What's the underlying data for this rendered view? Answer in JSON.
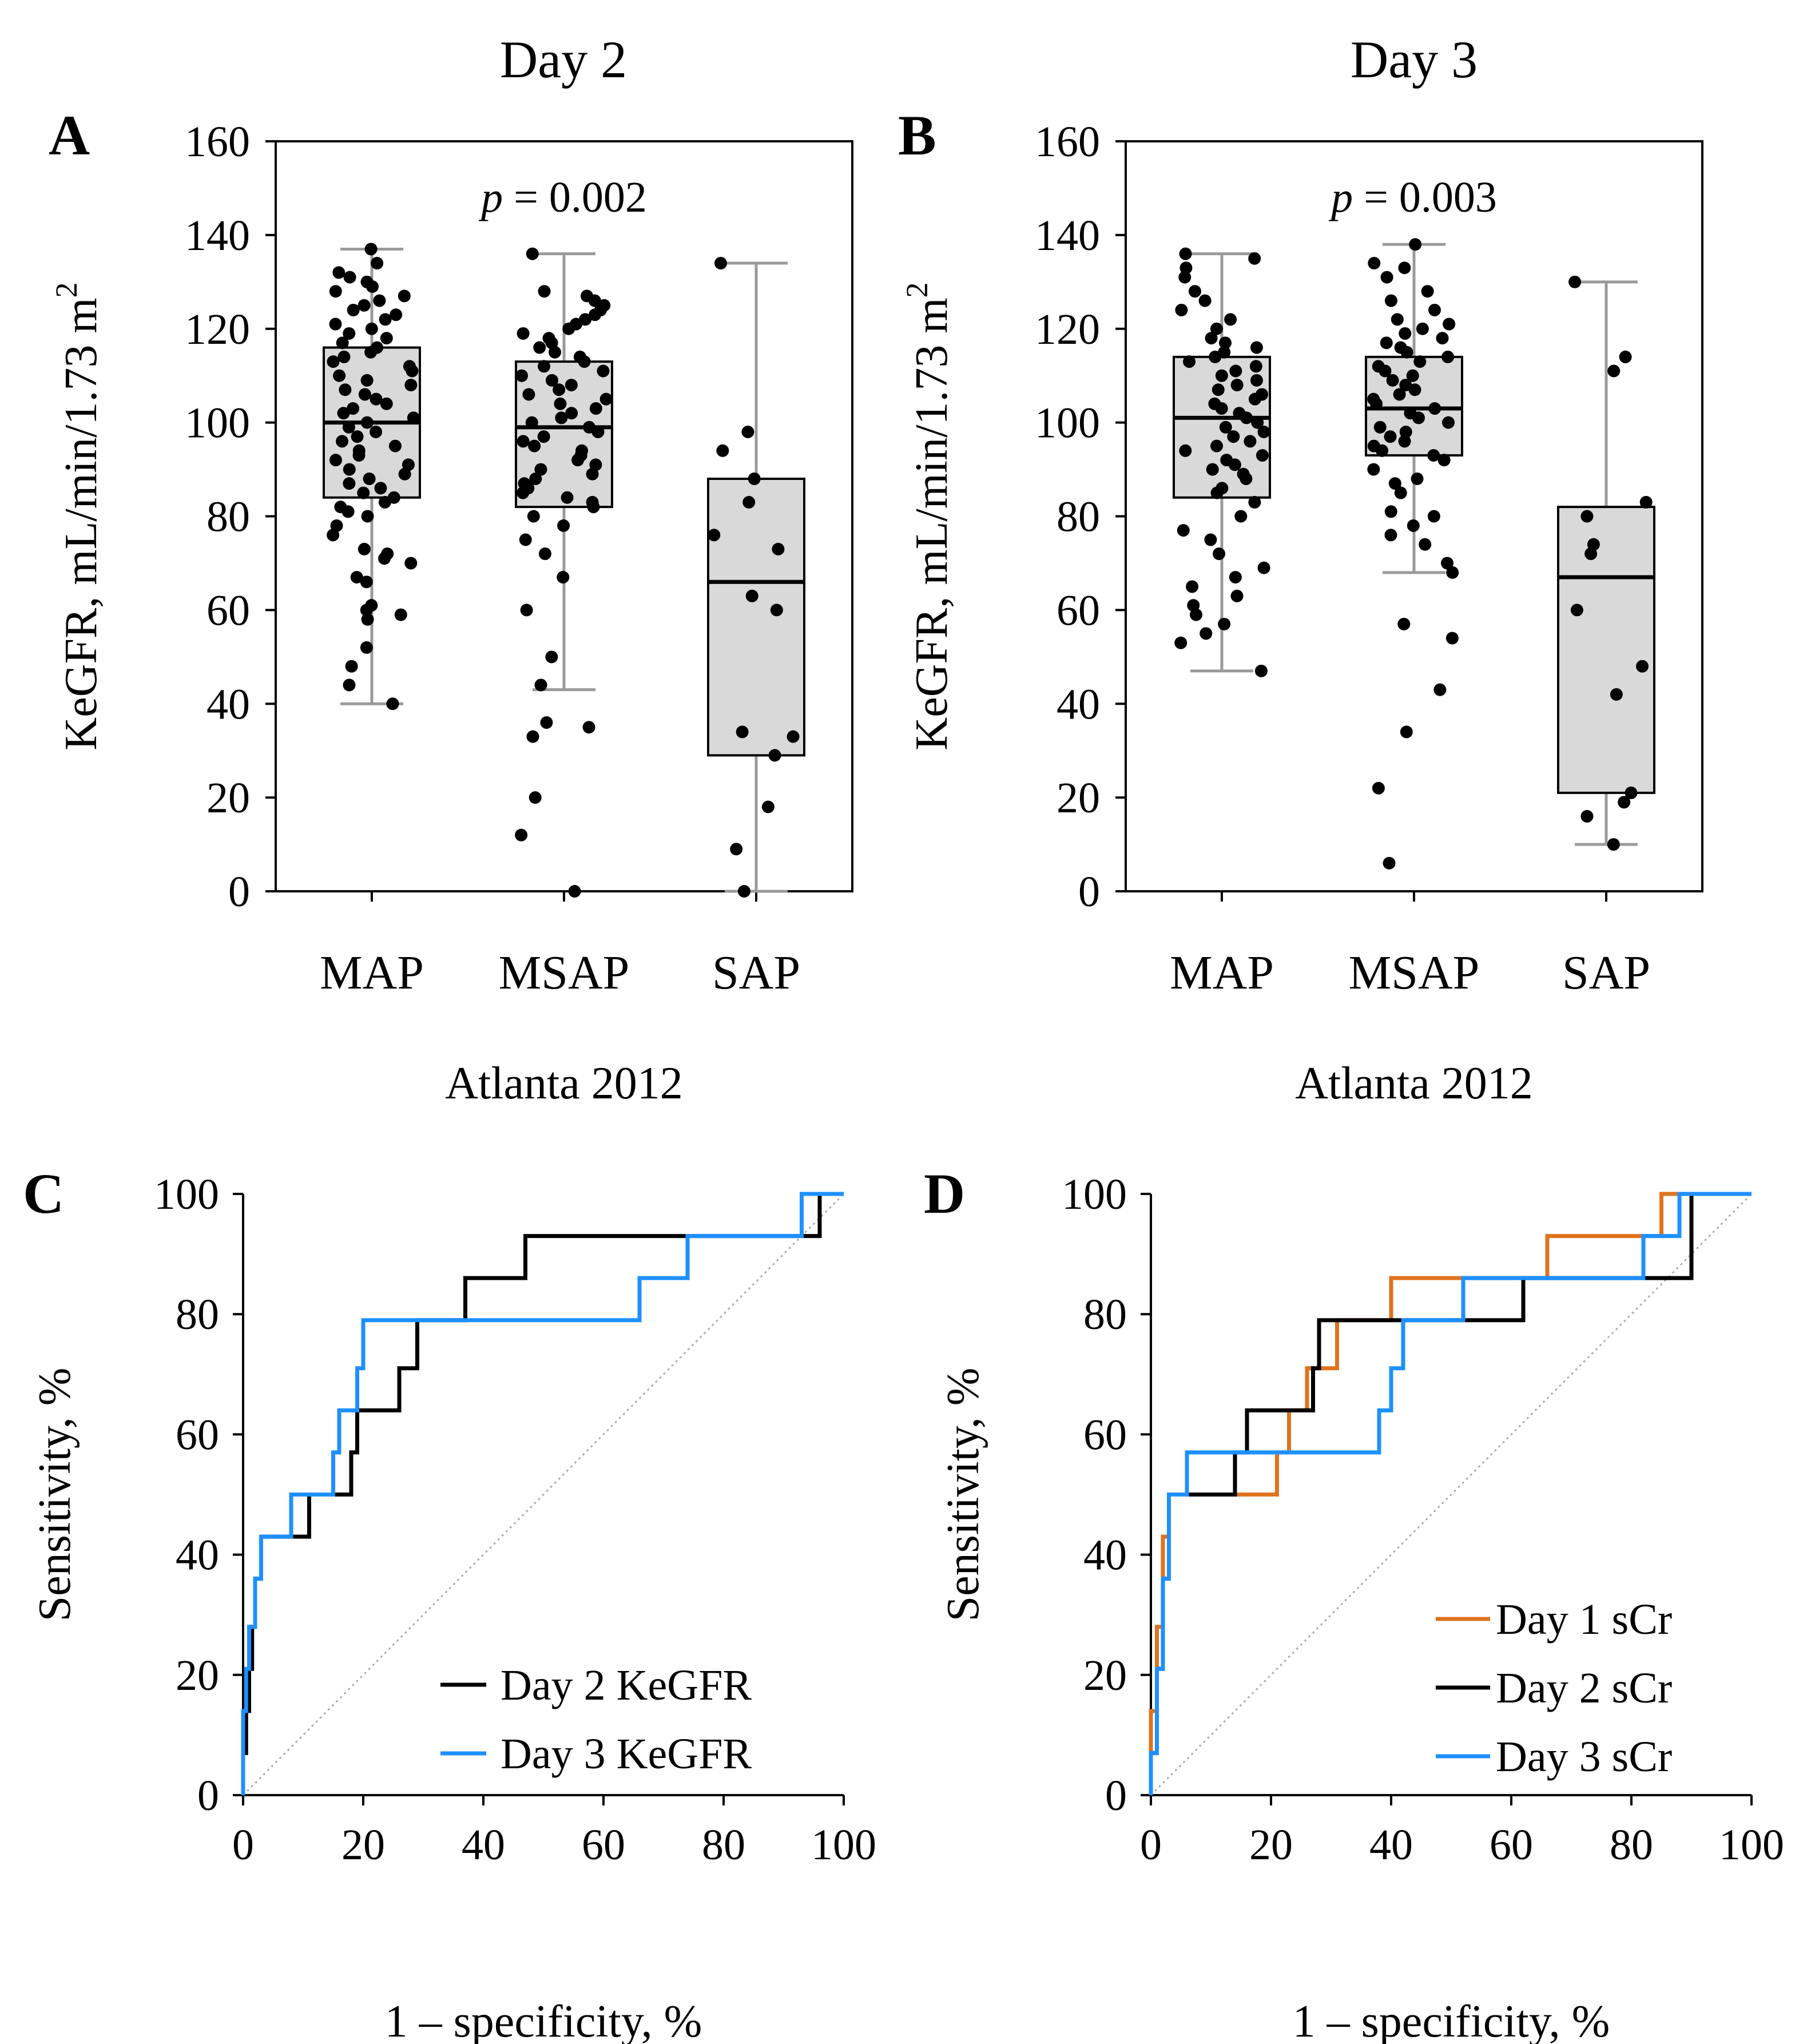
{
  "chart_data": [
    {
      "id": "A",
      "type": "box",
      "panel_label": "A",
      "title": "Day 2",
      "ylabel": "KeGFR, mL/min/1.73 m",
      "ylabel_sup": "2",
      "xlabel": "Atlanta 2012",
      "annotation": {
        "italic": "p",
        "rest": " = 0.002"
      },
      "ylim": [
        0,
        160
      ],
      "yticks": [
        "0",
        "20",
        "40",
        "60",
        "80",
        "100",
        "120",
        "140",
        "160"
      ],
      "categories": [
        "MAP",
        "MSAP",
        "SAP"
      ],
      "boxes": [
        {
          "category": "MAP",
          "q1": 84,
          "median": 100,
          "q3": 116,
          "whisker_low": 40,
          "whisker_high": 137,
          "points": [
            137,
            134,
            132,
            131,
            130,
            129,
            128,
            127,
            126,
            125,
            124,
            123,
            122,
            121,
            120,
            119,
            118,
            117,
            116,
            115,
            114,
            113,
            112,
            111,
            110,
            109,
            108,
            107,
            106,
            105,
            104,
            103,
            102,
            101,
            100,
            99,
            98,
            97,
            96,
            95,
            94,
            93,
            92,
            91,
            90,
            89,
            88,
            87,
            86,
            85,
            84,
            83,
            82,
            81,
            80,
            78,
            76,
            73,
            72,
            71,
            70,
            67,
            66,
            61,
            60,
            59,
            58,
            52,
            48,
            44,
            40
          ]
        },
        {
          "category": "MSAP",
          "q1": 82,
          "median": 99,
          "q3": 113,
          "whisker_low": 43,
          "whisker_high": 136,
          "points": [
            136,
            128,
            127,
            126,
            125,
            124,
            123,
            122,
            121,
            120,
            119,
            118,
            117,
            116,
            115,
            114,
            113,
            112,
            111,
            110,
            109,
            108,
            107,
            106,
            105,
            104,
            103,
            102,
            101,
            100,
            99,
            98,
            97,
            96,
            95,
            94,
            93,
            92,
            91,
            90,
            89,
            88,
            87,
            86,
            85,
            84,
            83,
            82,
            80,
            78,
            75,
            72,
            67,
            60,
            50,
            44,
            36,
            35,
            33,
            20,
            12,
            0
          ]
        },
        {
          "category": "SAP",
          "q1": 29,
          "median": 66,
          "q3": 88,
          "whisker_low": 0,
          "whisker_high": 134,
          "points": [
            134,
            98,
            94,
            88,
            83,
            76,
            73,
            63,
            60,
            34,
            33,
            29,
            18,
            9,
            0
          ]
        }
      ]
    },
    {
      "id": "B",
      "type": "box",
      "panel_label": "B",
      "title": "Day 3",
      "ylabel": "KeGFR, mL/min/1.73 m",
      "ylabel_sup": "2",
      "xlabel": "Atlanta 2012",
      "annotation": {
        "italic": "p",
        "rest": " = 0.003"
      },
      "ylim": [
        0,
        160
      ],
      "yticks": [
        "0",
        "20",
        "40",
        "60",
        "80",
        "100",
        "120",
        "140",
        "160"
      ],
      "categories": [
        "MAP",
        "MSAP",
        "SAP"
      ],
      "boxes": [
        {
          "category": "MAP",
          "q1": 84,
          "median": 101,
          "q3": 114,
          "whisker_low": 47,
          "whisker_high": 136,
          "points": [
            136,
            135,
            133,
            131,
            128,
            126,
            124,
            122,
            120,
            118,
            117,
            116,
            115,
            114,
            113,
            112,
            111,
            110,
            109,
            108,
            107,
            106,
            105,
            104,
            103,
            102,
            101,
            100,
            99,
            98,
            97,
            96,
            95,
            94,
            93,
            92,
            91,
            90,
            89,
            88,
            86,
            85,
            83,
            80,
            77,
            75,
            72,
            69,
            67,
            65,
            63,
            61,
            59,
            57,
            55,
            53,
            47
          ]
        },
        {
          "category": "MSAP",
          "q1": 93,
          "median": 103,
          "q3": 114,
          "whisker_low": 68,
          "whisker_high": 138,
          "points": [
            138,
            134,
            133,
            131,
            128,
            126,
            124,
            122,
            121,
            120,
            119,
            118,
            117,
            116,
            115,
            114,
            113,
            112,
            111,
            110,
            109,
            108,
            107,
            106,
            105,
            104,
            103,
            102,
            101,
            100,
            99,
            98,
            97,
            96,
            95,
            94,
            93,
            92,
            90,
            88,
            87,
            85,
            81,
            80,
            78,
            76,
            74,
            70,
            68,
            57,
            54,
            43,
            34,
            22,
            6
          ]
        },
        {
          "category": "SAP",
          "q1": 21,
          "median": 67,
          "q3": 82,
          "whisker_low": 10,
          "whisker_high": 130,
          "points": [
            130,
            114,
            111,
            83,
            80,
            74,
            72,
            60,
            48,
            42,
            21,
            19,
            16,
            10
          ]
        }
      ]
    },
    {
      "id": "C",
      "type": "line",
      "panel_label": "C",
      "xlabel": "1 – specificity, %",
      "ylabel": "Sensitivity, %",
      "xlim": [
        0,
        100
      ],
      "ylim": [
        0,
        100
      ],
      "xticks": [
        "0",
        "20",
        "40",
        "60",
        "80",
        "100"
      ],
      "yticks": [
        "0",
        "20",
        "40",
        "60",
        "80",
        "100"
      ],
      "reference_line": {
        "x": [
          0,
          100
        ],
        "y": [
          0,
          100
        ],
        "style": "dotted"
      },
      "series": [
        {
          "name": "Day 2 KeGFR",
          "color": "#000000",
          "x": [
            0,
            0,
            0.5,
            0.5,
            1,
            1,
            1.5,
            1.5,
            2,
            2,
            3,
            3,
            8,
            8,
            10,
            10,
            11,
            11,
            16,
            16,
            18,
            18,
            19,
            19,
            26,
            26,
            27,
            27,
            29,
            29,
            37,
            37,
            47,
            47,
            94,
            94,
            96,
            96,
            100
          ],
          "y": [
            0,
            7,
            7,
            14,
            14,
            21,
            21,
            28,
            28,
            36,
            36,
            43,
            43,
            43,
            43,
            43,
            43,
            50,
            50,
            50,
            50,
            57,
            57,
            64,
            64,
            71,
            71,
            71,
            71,
            79,
            79,
            86,
            86,
            93,
            93,
            93,
            93,
            100,
            100
          ]
        },
        {
          "name": "Day 3 KeGFR",
          "color": "#1E90FF",
          "x": [
            0,
            0,
            0.5,
            0.5,
            1,
            1,
            2,
            2,
            3,
            3,
            8,
            8,
            15,
            15,
            16,
            16,
            19,
            19,
            20,
            20,
            66,
            66,
            74,
            74,
            93,
            93,
            100
          ],
          "y": [
            0,
            14,
            14,
            21,
            21,
            28,
            28,
            36,
            36,
            43,
            43,
            50,
            50,
            57,
            57,
            64,
            64,
            71,
            71,
            79,
            79,
            86,
            86,
            93,
            93,
            100,
            100
          ]
        }
      ]
    },
    {
      "id": "D",
      "type": "line",
      "panel_label": "D",
      "xlabel": "1 – specificity, %",
      "ylabel": "Sensitivity, %",
      "xlim": [
        0,
        100
      ],
      "ylim": [
        0,
        100
      ],
      "xticks": [
        "0",
        "20",
        "40",
        "60",
        "80",
        "100"
      ],
      "yticks": [
        "0",
        "20",
        "40",
        "60",
        "80",
        "100"
      ],
      "reference_line": {
        "x": [
          0,
          100
        ],
        "y": [
          0,
          100
        ],
        "style": "dotted"
      },
      "series": [
        {
          "name": "Day 1 sCr",
          "color": "#E0731E",
          "x": [
            0,
            0,
            1,
            1,
            2,
            2,
            3,
            3,
            14,
            14,
            21,
            21,
            23,
            23,
            26,
            26,
            31,
            31,
            40,
            40,
            44,
            44,
            66,
            66,
            85,
            85,
            100
          ],
          "y": [
            0,
            14,
            14,
            28,
            28,
            43,
            43,
            50,
            50,
            50,
            50,
            57,
            57,
            64,
            64,
            71,
            71,
            79,
            79,
            86,
            86,
            86,
            86,
            93,
            93,
            100,
            100
          ]
        },
        {
          "name": "Day 2 sCr",
          "color": "#000000",
          "x": [
            0,
            0,
            1,
            1,
            2,
            2,
            3,
            3,
            14,
            14,
            16,
            16,
            27,
            27,
            28,
            28,
            60,
            60,
            62,
            62,
            88,
            88,
            90,
            90,
            100
          ],
          "y": [
            0,
            7,
            7,
            21,
            21,
            36,
            36,
            50,
            50,
            57,
            57,
            64,
            64,
            71,
            71,
            79,
            79,
            79,
            79,
            86,
            86,
            86,
            86,
            100,
            100
          ]
        },
        {
          "name": "Day 3 sCr",
          "color": "#1E90FF",
          "x": [
            0,
            0,
            1,
            1,
            2,
            2,
            3,
            3,
            6,
            6,
            38,
            38,
            40,
            40,
            42,
            42,
            50,
            50,
            52,
            52,
            82,
            82,
            87,
            87,
            88,
            88,
            100
          ],
          "y": [
            0,
            7,
            7,
            21,
            21,
            36,
            36,
            50,
            50,
            57,
            57,
            64,
            64,
            71,
            71,
            79,
            79,
            79,
            79,
            86,
            86,
            93,
            93,
            93,
            93,
            100,
            100
          ]
        }
      ]
    }
  ]
}
